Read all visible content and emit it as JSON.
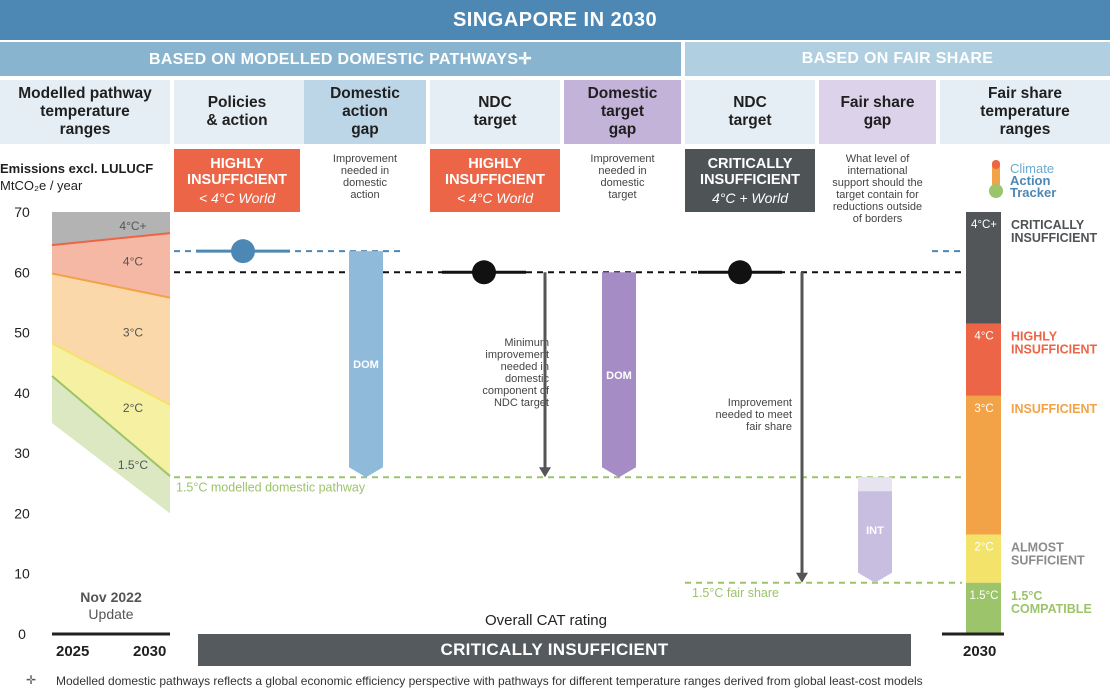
{
  "header": {
    "title": "SINGAPORE IN 2030",
    "left_section": "BASED ON MODELLED DOMESTIC PATHWAYS✛",
    "right_section": "BASED ON FAIR SHARE"
  },
  "columns": [
    {
      "label": "Modelled pathway\ntemperature\nranges"
    },
    {
      "label": "Policies\n& action"
    },
    {
      "label": "Domestic\naction\ngap"
    },
    {
      "label": "NDC\ntarget"
    },
    {
      "label": "Domestic\ntarget\ngap"
    },
    {
      "label": "NDC\ntarget"
    },
    {
      "label": "Fair share\ngap"
    },
    {
      "label": "Fair share\ntemperature\nranges"
    }
  ],
  "ratings": {
    "policies": {
      "main": "HIGHLY\nINSUFFICIENT",
      "sub": "< 4°C World",
      "color": "#ec6546"
    },
    "ndc_domestic": {
      "main": "HIGHLY\nINSUFFICIENT",
      "sub": "< 4°C World",
      "color": "#ec6546"
    },
    "ndc_fair": {
      "main": "CRITICALLY\nINSUFFICIENT",
      "sub": "4°C + World",
      "color": "#4e5356"
    }
  },
  "notes": {
    "domestic_action": "Improvement\nneeded in\ndomestic\naction",
    "domestic_target": "Improvement\nneeded in\ndomestic\ntarget",
    "fair_share_gap": "What level of\ninternational\nsupport should the\ntarget contain for\nreductions outside\nof borders",
    "min_improvement": "Minimum\nimprovement\nneeded in\ndomestic\ncomponent of\nNDC target",
    "fair_improvement": "Improvement\nneeded to meet\nfair share"
  },
  "logo": {
    "line1": "Climate",
    "line2": "Action",
    "line3": "Tracker"
  },
  "axis": {
    "title": "Emissions excl. LULUCF",
    "unit": "MtCO₂e / year",
    "update_line1": "Nov 2022",
    "update_line2": "Update",
    "year_start": "2025",
    "year_end": "2030",
    "year_right": "2030"
  },
  "overall": {
    "label": "Overall CAT rating",
    "value": "CRITICALLY INSUFFICIENT"
  },
  "footnote": "Modelled domestic pathways reflects a global economic efficiency perspective with pathways for different temperature ranges derived from global least-cost models",
  "footnote_symbol": "✛",
  "chart_data": {
    "type": "bar",
    "y_ticks": [
      0,
      10,
      20,
      30,
      40,
      50,
      60,
      70
    ],
    "ylim": [
      0,
      70
    ],
    "pathway_bands": [
      {
        "label": "4°C+",
        "lower_2025": 64.5,
        "lower_2030": 66.5,
        "color": "#b3b3b3"
      },
      {
        "label": "4°C",
        "lower_2025": 59.8,
        "lower_2030": 55.8,
        "color": "#f5b8a5"
      },
      {
        "label": "3°C",
        "lower_2025": 48.2,
        "lower_2030": 38.0,
        "color": "#fbd8aa"
      },
      {
        "label": "2°C",
        "lower_2025": 42.8,
        "lower_2030": 26.2,
        "color": "#f6f0a2"
      },
      {
        "label": "1.5°C",
        "lower_2025": 35.0,
        "lower_2030": 20.0,
        "color": "#dbe8c2"
      }
    ],
    "boundary_colors": [
      "#ec6546",
      "#f2a247",
      "#f3e36a",
      "#9cc46a"
    ],
    "policies_and_action": 63.5,
    "ndc_target": 60.0,
    "domestic_pathway_1_5": 26.0,
    "fair_share_1_5": 8.5,
    "domestic_action_gap": {
      "label": "DOM",
      "from": 63.5,
      "to": 26.0,
      "color": "#8fbad9"
    },
    "domestic_target_gap": {
      "label": "DOM",
      "from": 60.0,
      "to": 26.0,
      "color": "#a58cc4"
    },
    "international_gap": {
      "label": "INT",
      "from": 26.0,
      "to": 8.5,
      "color": "#c8bedf"
    },
    "line_labels": {
      "domestic": "1.5°C modelled domestic pathway",
      "fair": "1.5°C fair share"
    },
    "fair_share_scale": [
      {
        "label": "4°C+",
        "from": 51.5,
        "to": 70,
        "color": "#525659",
        "rating": "CRITICALLY\nINSUFFICIENT",
        "rating_color": "#4e5356"
      },
      {
        "label": "4°C",
        "from": 39.5,
        "to": 51.5,
        "color": "#ec6546",
        "rating": "HIGHLY\nINSUFFICIENT",
        "rating_color": "#ec6546"
      },
      {
        "label": "3°C",
        "from": 16.5,
        "to": 39.5,
        "color": "#f2a247",
        "rating": "INSUFFICIENT",
        "rating_color": "#f2a247"
      },
      {
        "label": "2°C",
        "from": 8.5,
        "to": 16.5,
        "color": "#f3e36a",
        "rating": "ALMOST\nSUFFICIENT",
        "rating_color": "#8c8c8c"
      },
      {
        "label": "1.5°C",
        "from": 0,
        "to": 8.5,
        "color": "#9cc46a",
        "rating": "1.5°C\nCOMPATIBLE",
        "rating_color": "#9cc46a"
      }
    ]
  }
}
